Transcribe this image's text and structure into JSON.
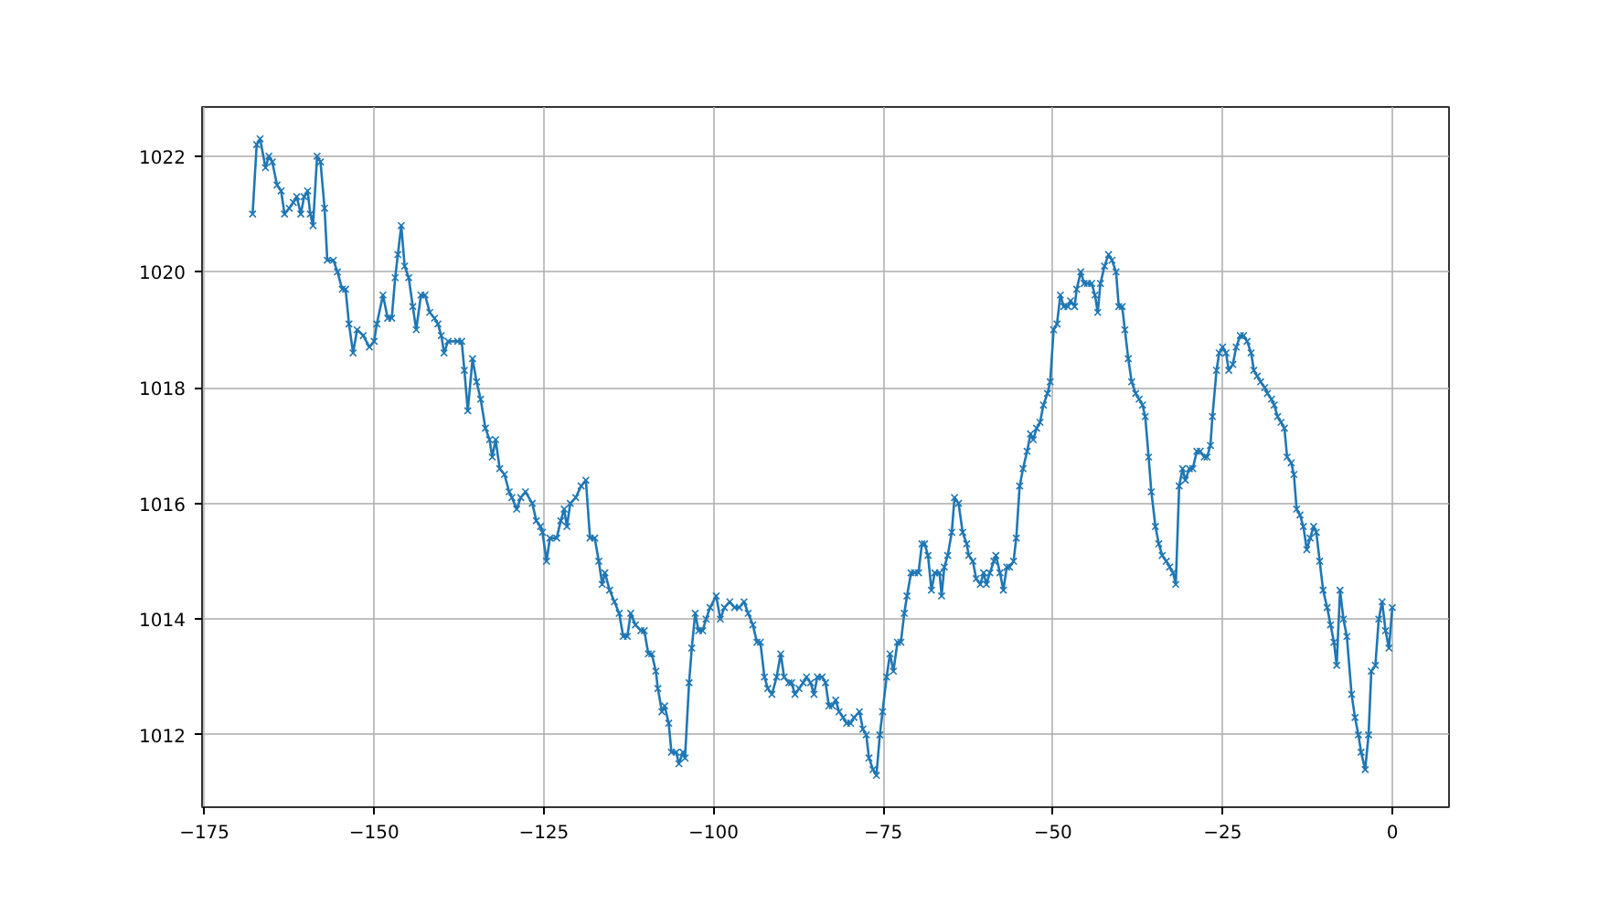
{
  "chart_data": {
    "type": "line",
    "marker": "cross",
    "line_style": "solid",
    "grid": true,
    "xlim": [
      -175.35,
      8.35
    ],
    "ylim": [
      1010.75,
      1022.85
    ],
    "xticks": [
      -175,
      -150,
      -125,
      -100,
      -75,
      -50,
      -25,
      0
    ],
    "yticks": [
      1012,
      1014,
      1016,
      1018,
      1020,
      1022
    ],
    "series": [
      {
        "color": "#1f77b4",
        "x": [
          -167.9,
          -167.3,
          -166.8,
          -166.0,
          -165.5,
          -165.0,
          -164.3,
          -163.7,
          -163.2,
          -162.5,
          -161.9,
          -161.4,
          -160.8,
          -160.3,
          -159.8,
          -159.4,
          -159.0,
          -158.4,
          -157.9,
          -157.3,
          -156.9,
          -156.0,
          -155.4,
          -154.7,
          -154.2,
          -153.7,
          -153.1,
          -152.5,
          -151.6,
          -150.7,
          -150.0,
          -149.6,
          -148.7,
          -148.0,
          -147.4,
          -146.9,
          -146.5,
          -146.0,
          -145.5,
          -144.9,
          -144.3,
          -143.8,
          -143.1,
          -142.5,
          -141.8,
          -141.1,
          -140.6,
          -140.1,
          -139.7,
          -139.1,
          -137.7,
          -137.1,
          -136.7,
          -136.2,
          -135.5,
          -134.9,
          -134.3,
          -133.6,
          -133.0,
          -132.6,
          -132.1,
          -131.5,
          -130.8,
          -130.1,
          -129.7,
          -129.0,
          -128.4,
          -127.7,
          -126.7,
          -126.1,
          -125.5,
          -125.2,
          -124.6,
          -124.1,
          -123.1,
          -122.5,
          -122.0,
          -121.6,
          -121.1,
          -120.3,
          -119.5,
          -118.8,
          -118.2,
          -117.5,
          -116.9,
          -116.4,
          -116.0,
          -115.3,
          -114.6,
          -113.9,
          -113.3,
          -112.7,
          -112.2,
          -111.5,
          -110.7,
          -110.2,
          -109.6,
          -109.1,
          -108.5,
          -108.2,
          -107.6,
          -107.2,
          -106.6,
          -106.2,
          -105.5,
          -105.1,
          -104.5,
          -104.2,
          -103.6,
          -103.2,
          -102.7,
          -102.2,
          -101.6,
          -101.1,
          -100.5,
          -99.6,
          -99.0,
          -98.4,
          -97.6,
          -96.9,
          -96.2,
          -95.5,
          -94.9,
          -94.2,
          -93.6,
          -93.1,
          -92.5,
          -92.0,
          -91.4,
          -90.7,
          -90.1,
          -89.6,
          -88.9,
          -88.5,
          -88.0,
          -87.4,
          -86.8,
          -86.3,
          -85.7,
          -85.2,
          -84.7,
          -84.0,
          -83.5,
          -83.0,
          -82.5,
          -82.0,
          -81.5,
          -80.9,
          -80.4,
          -79.8,
          -79.3,
          -78.5,
          -78.0,
          -77.5,
          -77.1,
          -76.5,
          -76.0,
          -75.5,
          -75.1,
          -74.5,
          -74.0,
          -73.5,
          -72.9,
          -72.4,
          -71.9,
          -71.5,
          -70.9,
          -70.4,
          -69.8,
          -69.3,
          -68.9,
          -68.4,
          -67.9,
          -67.4,
          -66.7,
          -66.4,
          -66.0,
          -65.5,
          -64.9,
          -64.5,
          -63.9,
          -63.3,
          -62.7,
          -62.4,
          -61.8,
          -61.3,
          -60.7,
          -60.2,
          -59.8,
          -59.3,
          -58.7,
          -58.4,
          -57.8,
          -57.3,
          -56.8,
          -56.4,
          -55.8,
          -55.4,
          -54.9,
          -54.4,
          -53.8,
          -53.3,
          -52.9,
          -52.4,
          -51.9,
          -51.4,
          -50.8,
          -50.4,
          -49.9,
          -49.4,
          -48.9,
          -48.4,
          -47.8,
          -47.4,
          -46.8,
          -46.5,
          -45.9,
          -45.4,
          -44.9,
          -44.3,
          -43.8,
          -43.4,
          -43.0,
          -42.4,
          -41.8,
          -41.3,
          -40.7,
          -40.3,
          -39.8,
          -39.4,
          -38.9,
          -38.4,
          -37.8,
          -37.3,
          -36.8,
          -36.4,
          -35.9,
          -35.5,
          -34.9,
          -34.4,
          -33.9,
          -33.3,
          -32.8,
          -32.3,
          -31.9,
          -31.4,
          -30.9,
          -30.5,
          -29.9,
          -29.4,
          -28.8,
          -28.3,
          -27.7,
          -27.3,
          -26.8,
          -26.5,
          -25.9,
          -25.5,
          -25.0,
          -24.5,
          -24.1,
          -23.5,
          -23.0,
          -22.4,
          -21.9,
          -21.4,
          -20.8,
          -20.4,
          -19.9,
          -19.4,
          -18.8,
          -18.4,
          -17.8,
          -17.4,
          -16.9,
          -16.4,
          -15.9,
          -15.5,
          -14.9,
          -14.5,
          -14.1,
          -13.6,
          -13.1,
          -12.6,
          -12.1,
          -11.6,
          -11.2,
          -10.7,
          -10.2,
          -9.6,
          -9.1,
          -8.6,
          -8.2,
          -7.7,
          -7.2,
          -6.7,
          -6.0,
          -5.5,
          -5.0,
          -4.6,
          -4.0,
          -3.5,
          -3.1,
          -2.5,
          -2.0,
          -1.5,
          -1.0,
          -0.5,
          0.0
        ],
        "values": [
          1021.0,
          1022.2,
          1022.3,
          1021.8,
          1022.0,
          1021.9,
          1021.5,
          1021.4,
          1021.0,
          1021.1,
          1021.2,
          1021.3,
          1021.0,
          1021.3,
          1021.4,
          1021.0,
          1020.8,
          1022.0,
          1021.9,
          1021.1,
          1020.2,
          1020.2,
          1020.0,
          1019.7,
          1019.7,
          1019.1,
          1018.6,
          1019.0,
          1018.9,
          1018.7,
          1018.8,
          1019.1,
          1019.6,
          1019.2,
          1019.2,
          1019.9,
          1020.3,
          1020.8,
          1020.1,
          1019.9,
          1019.4,
          1019.0,
          1019.6,
          1019.6,
          1019.3,
          1019.2,
          1019.1,
          1018.9,
          1018.6,
          1018.8,
          1018.8,
          1018.8,
          1018.3,
          1017.6,
          1018.5,
          1018.1,
          1017.8,
          1017.3,
          1017.1,
          1016.8,
          1017.1,
          1016.6,
          1016.5,
          1016.2,
          1016.1,
          1015.9,
          1016.1,
          1016.2,
          1016.0,
          1015.7,
          1015.6,
          1015.5,
          1015.0,
          1015.4,
          1015.4,
          1015.7,
          1015.9,
          1015.6,
          1016.0,
          1016.1,
          1016.3,
          1016.4,
          1015.4,
          1015.4,
          1015.0,
          1014.6,
          1014.8,
          1014.5,
          1014.3,
          1014.1,
          1013.7,
          1013.7,
          1014.1,
          1013.9,
          1013.8,
          1013.8,
          1013.4,
          1013.4,
          1013.1,
          1012.8,
          1012.4,
          1012.5,
          1012.2,
          1011.7,
          1011.7,
          1011.5,
          1011.7,
          1011.6,
          1012.9,
          1013.5,
          1014.1,
          1013.8,
          1013.8,
          1014.0,
          1014.2,
          1014.4,
          1014.0,
          1014.2,
          1014.3,
          1014.2,
          1014.2,
          1014.3,
          1014.1,
          1013.9,
          1013.6,
          1013.6,
          1013.0,
          1012.8,
          1012.7,
          1013.0,
          1013.4,
          1013.0,
          1012.9,
          1012.9,
          1012.7,
          1012.8,
          1012.9,
          1013.0,
          1012.9,
          1012.7,
          1013.0,
          1013.0,
          1012.9,
          1012.5,
          1012.5,
          1012.6,
          1012.4,
          1012.3,
          1012.2,
          1012.2,
          1012.3,
          1012.4,
          1012.1,
          1012.0,
          1011.6,
          1011.4,
          1011.3,
          1012.0,
          1012.4,
          1013.0,
          1013.4,
          1013.1,
          1013.6,
          1013.6,
          1014.1,
          1014.4,
          1014.8,
          1014.8,
          1014.8,
          1015.3,
          1015.3,
          1015.1,
          1014.5,
          1014.8,
          1014.8,
          1014.4,
          1014.9,
          1015.1,
          1015.5,
          1016.1,
          1016.0,
          1015.5,
          1015.3,
          1015.1,
          1015.0,
          1014.7,
          1014.6,
          1014.8,
          1014.6,
          1014.8,
          1015.0,
          1015.1,
          1014.8,
          1014.5,
          1014.9,
          1014.9,
          1015.0,
          1015.4,
          1016.3,
          1016.6,
          1016.9,
          1017.2,
          1017.1,
          1017.3,
          1017.4,
          1017.7,
          1017.9,
          1018.1,
          1019.0,
          1019.1,
          1019.6,
          1019.4,
          1019.4,
          1019.5,
          1019.4,
          1019.7,
          1020.0,
          1019.8,
          1019.8,
          1019.8,
          1019.6,
          1019.3,
          1019.8,
          1020.1,
          1020.3,
          1020.2,
          1020.0,
          1019.4,
          1019.4,
          1019.0,
          1018.5,
          1018.1,
          1017.9,
          1017.8,
          1017.7,
          1017.5,
          1016.8,
          1016.2,
          1015.6,
          1015.3,
          1015.1,
          1015.0,
          1014.9,
          1014.8,
          1014.6,
          1016.3,
          1016.6,
          1016.4,
          1016.6,
          1016.6,
          1016.9,
          1016.9,
          1016.8,
          1016.8,
          1017.0,
          1017.5,
          1018.3,
          1018.6,
          1018.7,
          1018.6,
          1018.3,
          1018.4,
          1018.7,
          1018.9,
          1018.9,
          1018.8,
          1018.6,
          1018.3,
          1018.2,
          1018.1,
          1018.0,
          1017.9,
          1017.8,
          1017.7,
          1017.5,
          1017.4,
          1017.3,
          1016.8,
          1016.7,
          1016.5,
          1015.9,
          1015.8,
          1015.6,
          1015.2,
          1015.4,
          1015.6,
          1015.5,
          1015.0,
          1014.5,
          1014.2,
          1013.9,
          1013.6,
          1013.2,
          1014.5,
          1014.0,
          1013.7,
          1012.7,
          1012.3,
          1012.0,
          1011.7,
          1011.4,
          1012.0,
          1013.1,
          1013.2,
          1014.0,
          1014.3,
          1013.8,
          1013.5,
          1014.2
        ]
      }
    ]
  }
}
